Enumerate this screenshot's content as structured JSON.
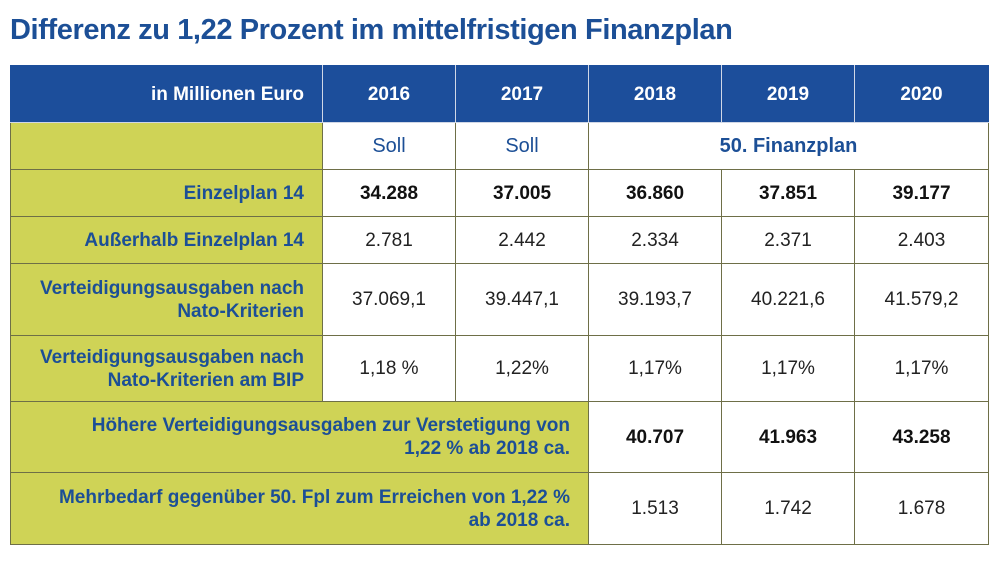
{
  "title": "Differenz zu 1,22 Prozent im mittelfristigen Finanzplan",
  "colors": {
    "header_bg": "#1c4e9b",
    "label_bg": "#cfd356",
    "label_text": "#1c4f96",
    "title_text": "#1c4f96"
  },
  "chart_data": {
    "type": "table",
    "title": "Differenz zu 1,22 Prozent im mittelfristigen Finanzplan",
    "unit_header": "in Millionen Euro",
    "columns": [
      "2016",
      "2017",
      "2018",
      "2019",
      "2020"
    ],
    "status": {
      "2016": "Soll",
      "2017": "Soll",
      "finanzplan": "50. Finanzplan"
    },
    "rows": [
      {
        "label": "Einzelplan 14",
        "values": [
          "34.288",
          "37.005",
          "36.860",
          "37.851",
          "39.177"
        ]
      },
      {
        "label": "Außerhalb Einzelplan 14",
        "values": [
          "2.781",
          "2.442",
          "2.334",
          "2.371",
          "2.403"
        ]
      },
      {
        "label_1": "Verteidigungsausgaben nach",
        "label_2": "Nato-Kriterien",
        "values": [
          "37.069,1",
          "39.447,1",
          "39.193,7",
          "40.221,6",
          "41.579,2"
        ]
      },
      {
        "label_1": "Verteidigungsausgaben nach",
        "label_2": "Nato-Kriterien am BIP",
        "values": [
          "1,18 %",
          "1,22%",
          "1,17%",
          "1,17%",
          "1,17%"
        ]
      },
      {
        "label_1": "Höhere Verteidigungsausgaben zur Verstetigung von",
        "label_2": "1,22 % ab 2018 ca.",
        "values": [
          "40.707",
          "41.963",
          "43.258"
        ]
      },
      {
        "label_1": "Mehrbedarf gegenüber 50. Fpl zum Erreichen von 1,22 %",
        "label_2": "ab 2018 ca.",
        "values": [
          "1.513",
          "1.742",
          "1.678"
        ]
      }
    ]
  }
}
